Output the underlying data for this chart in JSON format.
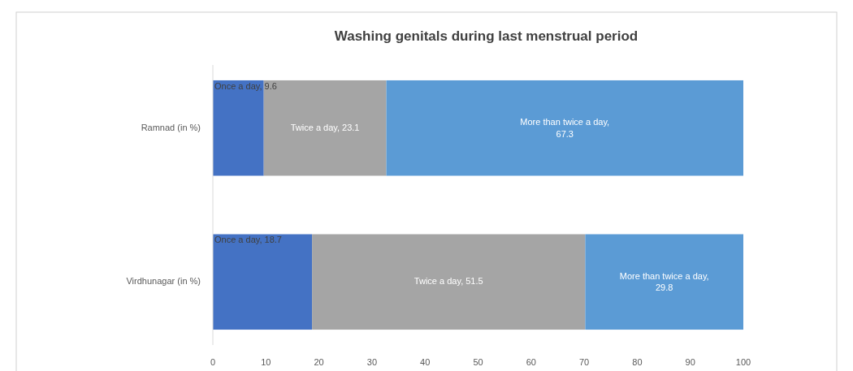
{
  "chart_data": {
    "type": "bar",
    "orientation": "horizontal",
    "stacked": true,
    "title": "Washing genitals during last menstrual period",
    "categories": [
      "Ramnad (in %)",
      "Virdhunagar (in %)"
    ],
    "series": [
      {
        "color": "#4472c4",
        "values": [
          9.6,
          18.7
        ],
        "value_labels": [
          "Once a day, 9.6",
          "Once a day, 18.7"
        ]
      },
      {
        "color": "#a5a5a5",
        "values": [
          23.1,
          51.5
        ],
        "value_labels": [
          "Twice a day, 23.1",
          "Twice a day, 51.5"
        ]
      },
      {
        "color": "#5b9bd5",
        "values": [
          67.3,
          29.8
        ],
        "value_labels": [
          "More than twice a day, 67.3",
          "More than twice a day, 29.8"
        ]
      }
    ],
    "xlim": [
      0,
      100
    ],
    "xticks": [
      0,
      10,
      20,
      30,
      40,
      50,
      60,
      70,
      80,
      90,
      100
    ],
    "grid": false,
    "legend": false
  }
}
